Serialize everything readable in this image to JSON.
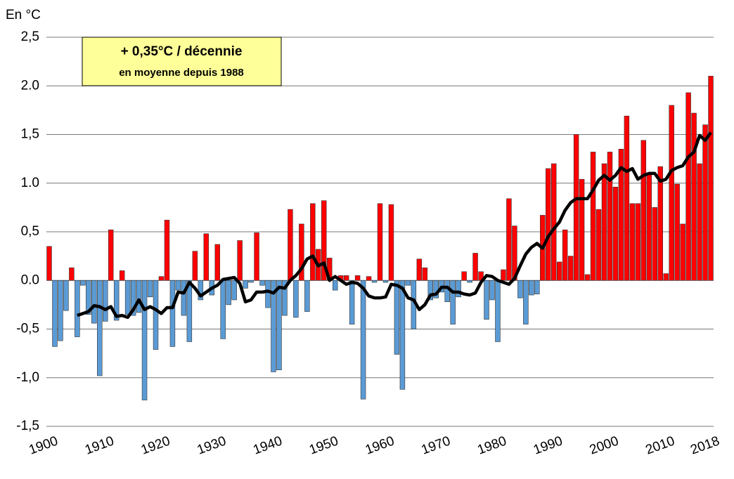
{
  "chart_data": {
    "type": "bar",
    "y_label": "En °C",
    "annotation": {
      "line1": "+ 0,35°C / décennie",
      "line2": "en moyenne depuis 1988"
    },
    "x": [
      1900,
      1901,
      1902,
      1903,
      1904,
      1905,
      1906,
      1907,
      1908,
      1909,
      1910,
      1911,
      1912,
      1913,
      1914,
      1915,
      1916,
      1917,
      1918,
      1919,
      1920,
      1921,
      1922,
      1923,
      1924,
      1925,
      1926,
      1927,
      1928,
      1929,
      1930,
      1931,
      1932,
      1933,
      1934,
      1935,
      1936,
      1937,
      1938,
      1939,
      1940,
      1941,
      1942,
      1943,
      1944,
      1945,
      1946,
      1947,
      1948,
      1949,
      1950,
      1951,
      1952,
      1953,
      1954,
      1955,
      1956,
      1957,
      1958,
      1959,
      1960,
      1961,
      1962,
      1963,
      1964,
      1965,
      1966,
      1967,
      1968,
      1969,
      1970,
      1971,
      1972,
      1973,
      1974,
      1975,
      1976,
      1977,
      1978,
      1979,
      1980,
      1981,
      1982,
      1983,
      1984,
      1985,
      1986,
      1987,
      1988,
      1989,
      1990,
      1991,
      1992,
      1993,
      1994,
      1995,
      1996,
      1997,
      1998,
      1999,
      2000,
      2001,
      2002,
      2003,
      2004,
      2005,
      2006,
      2007,
      2008,
      2009,
      2010,
      2011,
      2012,
      2013,
      2014,
      2015,
      2016,
      2017,
      2018
    ],
    "series": [
      {
        "type": "bar",
        "positive_color": "#ff0000",
        "negative_color": "#5b9bd5",
        "values": [
          0.35,
          -0.68,
          -0.62,
          -0.31,
          0.13,
          -0.58,
          -0.05,
          -0.35,
          -0.44,
          -0.98,
          -0.42,
          0.52,
          -0.41,
          0.1,
          -0.35,
          -0.36,
          -0.33,
          -1.23,
          -0.17,
          -0.71,
          0.04,
          0.62,
          -0.68,
          -0.1,
          -0.36,
          -0.63,
          0.3,
          -0.2,
          0.48,
          -0.15,
          0.37,
          -0.6,
          -0.25,
          -0.2,
          0.41,
          -0.08,
          -0.02,
          0.49,
          -0.05,
          -0.28,
          -0.94,
          -0.92,
          -0.36,
          0.73,
          -0.38,
          0.58,
          -0.32,
          0.79,
          0.32,
          0.82,
          0.23,
          -0.1,
          0.05,
          0.05,
          -0.45,
          0.05,
          -1.22,
          0.04,
          -0.02,
          0.79,
          -0.02,
          0.78,
          -0.76,
          -1.12,
          -0.05,
          -0.5,
          0.22,
          0.13,
          -0.2,
          -0.18,
          -0.12,
          -0.22,
          -0.45,
          -0.17,
          0.09,
          -0.02,
          0.28,
          0.09,
          -0.4,
          -0.2,
          -0.63,
          0.11,
          0.84,
          0.56,
          -0.18,
          -0.45,
          -0.15,
          -0.14,
          0.67,
          1.15,
          1.2,
          0.19,
          0.52,
          0.25,
          1.5,
          1.04,
          0.06,
          1.32,
          0.73,
          1.2,
          1.32,
          0.96,
          1.35,
          1.69,
          0.79,
          0.79,
          1.44,
          1.1,
          0.75,
          1.17,
          0.07,
          1.8,
          0.99,
          0.58,
          1.93,
          1.72,
          1.2,
          1.6,
          2.1
        ]
      },
      {
        "type": "line",
        "color": "#000000",
        "values": [
          null,
          null,
          null,
          null,
          null,
          -0.36,
          -0.34,
          -0.32,
          -0.26,
          -0.27,
          -0.3,
          -0.27,
          -0.37,
          -0.36,
          -0.38,
          -0.3,
          -0.2,
          -0.3,
          -0.27,
          -0.3,
          -0.34,
          -0.28,
          -0.28,
          -0.12,
          -0.13,
          -0.02,
          -0.08,
          -0.16,
          -0.12,
          -0.08,
          -0.05,
          0.01,
          0.02,
          0.03,
          -0.03,
          -0.22,
          -0.2,
          -0.12,
          -0.12,
          -0.11,
          -0.13,
          -0.07,
          -0.08,
          0.0,
          0.05,
          0.12,
          0.22,
          0.25,
          0.15,
          0.18,
          0.0,
          0.04,
          0.0,
          -0.04,
          -0.02,
          -0.03,
          -0.08,
          -0.16,
          -0.18,
          -0.18,
          -0.17,
          -0.04,
          -0.05,
          -0.08,
          -0.18,
          -0.2,
          -0.3,
          -0.25,
          -0.15,
          -0.14,
          -0.07,
          -0.07,
          -0.12,
          -0.12,
          -0.14,
          -0.15,
          -0.13,
          -0.02,
          0.05,
          0.04,
          0.0,
          -0.02,
          -0.04,
          0.02,
          0.15,
          0.27,
          0.34,
          0.38,
          0.33,
          0.45,
          0.53,
          0.6,
          0.72,
          0.8,
          0.84,
          0.84,
          0.84,
          0.93,
          1.03,
          1.08,
          1.03,
          1.08,
          1.16,
          1.12,
          1.15,
          1.04,
          1.08,
          1.1,
          1.1,
          1.02,
          1.04,
          1.13,
          1.16,
          1.18,
          1.27,
          1.32,
          1.49,
          1.44,
          1.52
        ]
      }
    ],
    "xlim": [
      1899.5,
      2018.5
    ],
    "xticks": [
      1900,
      1910,
      1920,
      1930,
      1940,
      1950,
      1960,
      1970,
      1980,
      1990,
      2000,
      2010,
      2018
    ],
    "ylim": [
      -1.5,
      2.5
    ],
    "yticks": [
      {
        "value": 2.5,
        "label": "2,5"
      },
      {
        "value": 2.0,
        "label": "2.0"
      },
      {
        "value": 1.5,
        "label": "1,5"
      },
      {
        "value": 1.0,
        "label": "1.0"
      },
      {
        "value": 0.5,
        "label": "0,5"
      },
      {
        "value": 0.0,
        "label": "0.0"
      },
      {
        "value": -0.5,
        "label": "-0,5"
      },
      {
        "value": -1.0,
        "label": "-1,0"
      },
      {
        "value": -1.5,
        "label": "-1,5"
      }
    ],
    "grid": true
  }
}
